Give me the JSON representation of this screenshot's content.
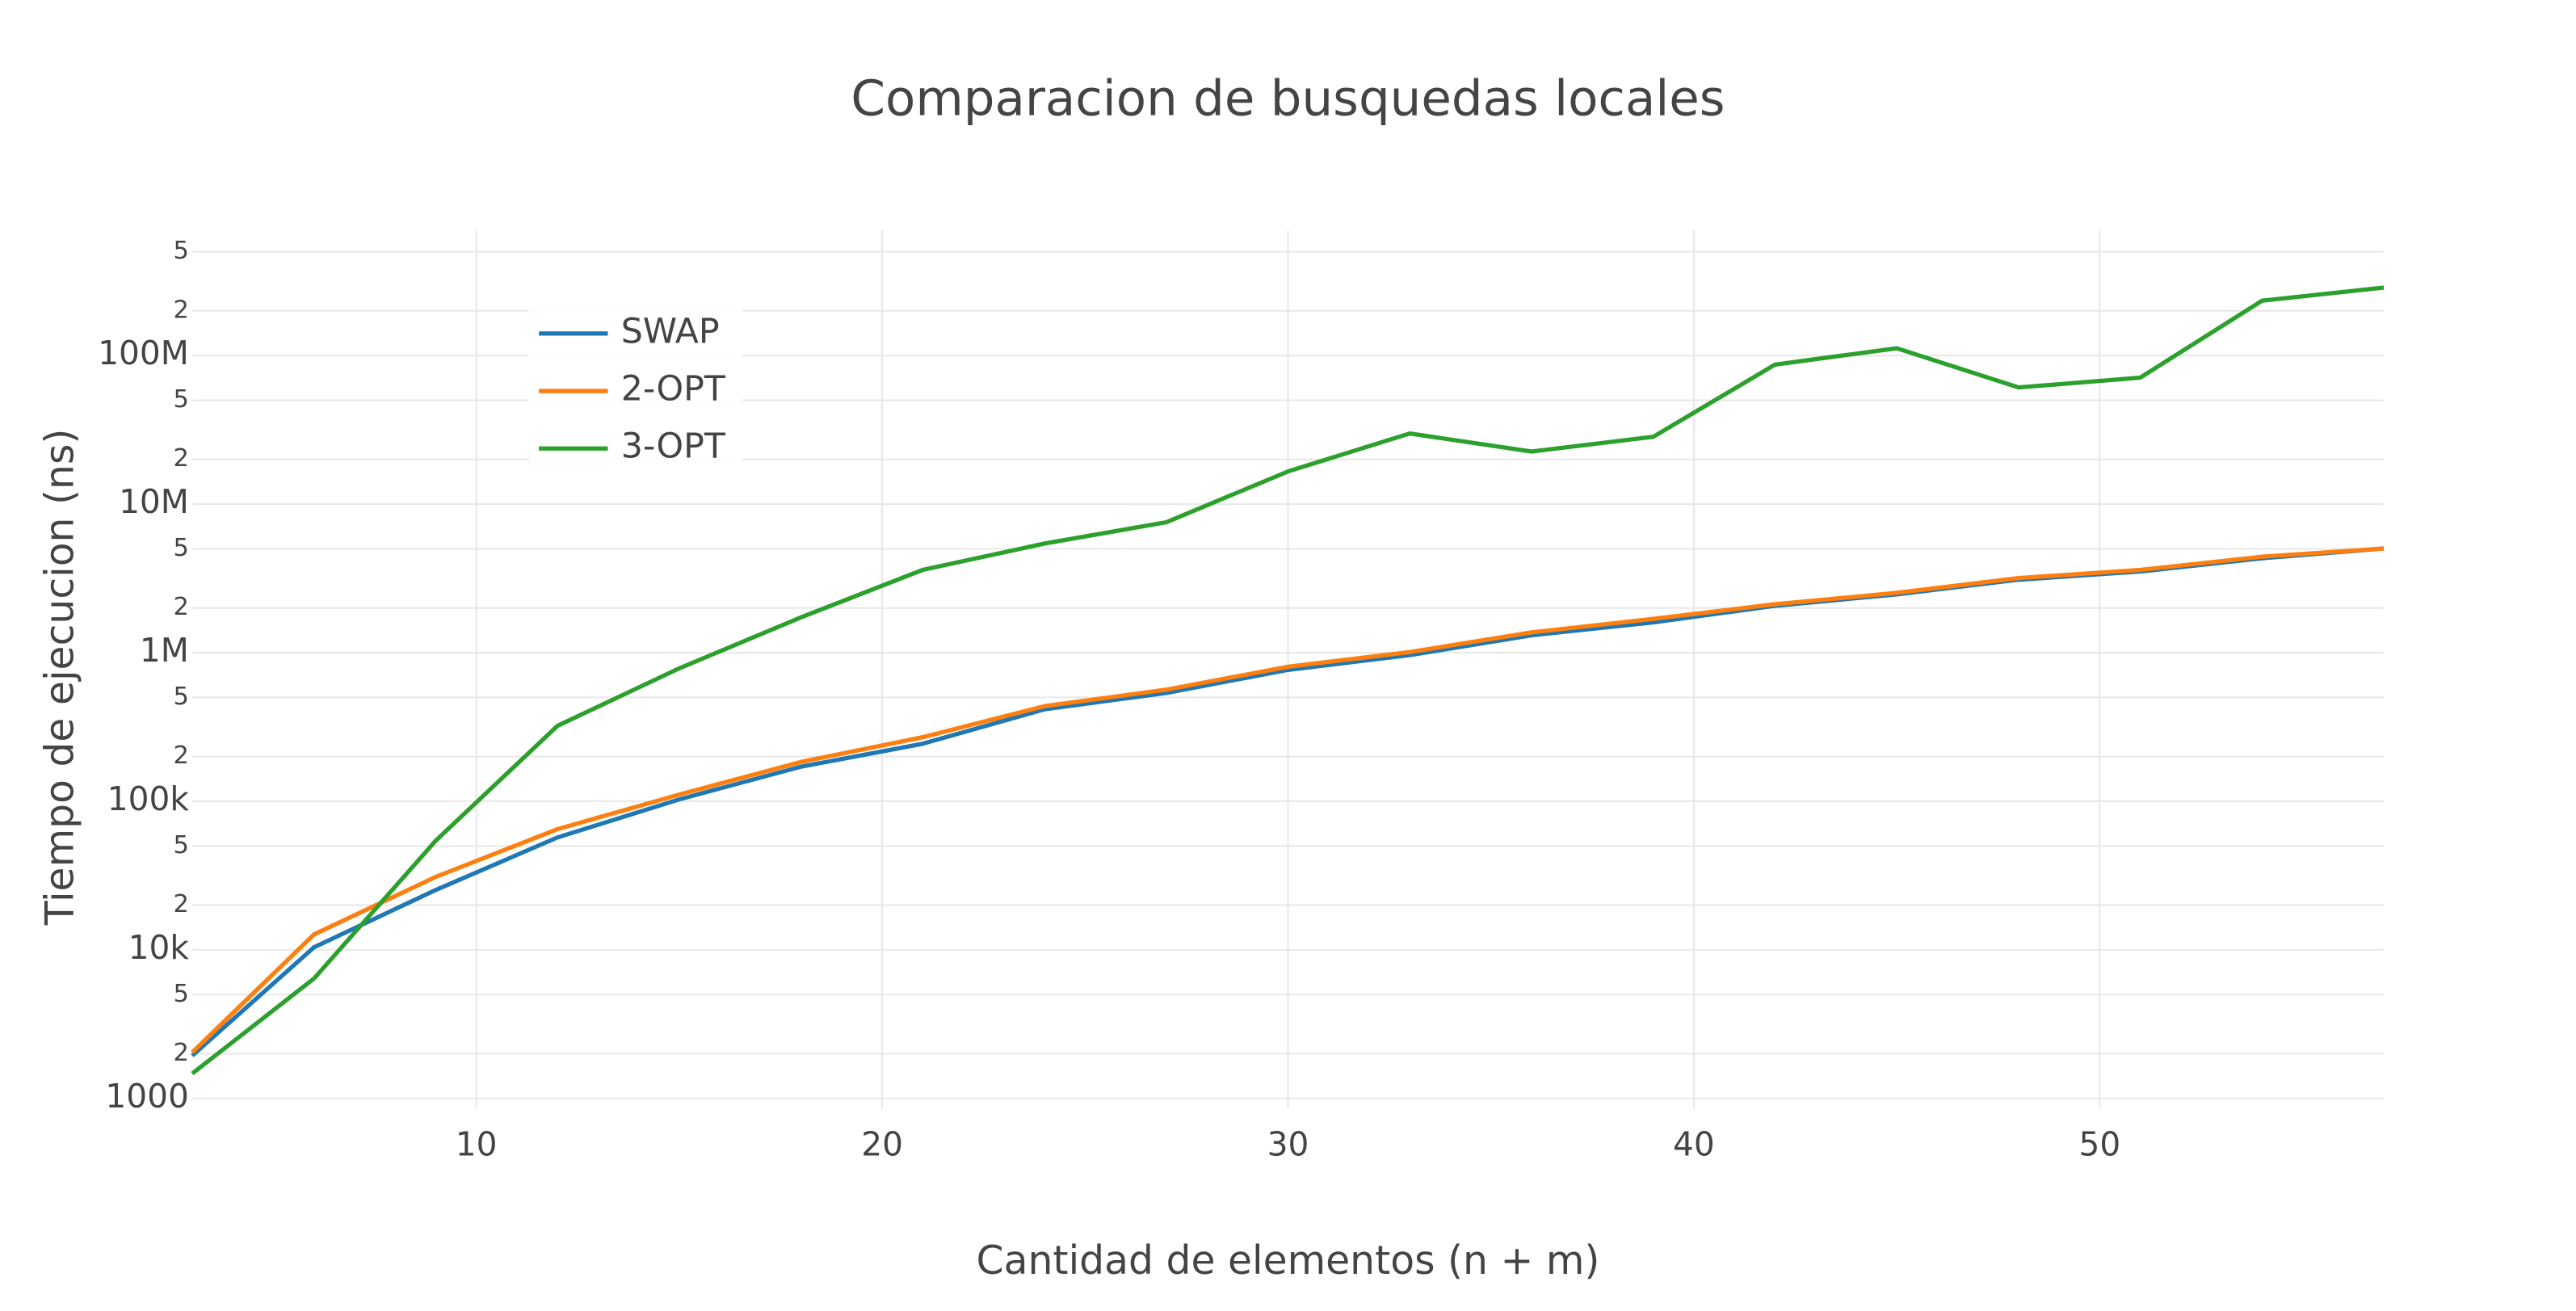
{
  "chart_data": {
    "type": "line",
    "title": "Comparacion de busquedas locales",
    "x_label": "Cantidad de elementos (n + m)",
    "y_label": "Tiempo de ejecucion (ns)",
    "x": [
      3,
      6,
      9,
      12,
      15,
      18,
      21,
      24,
      27,
      30,
      33,
      36,
      39,
      42,
      45,
      48,
      51,
      54,
      57
    ],
    "series": [
      {
        "name": "SWAP",
        "color": "#1f77b4",
        "values": [
          1940,
          10400,
          25300,
          57100,
          103000,
          171000,
          244000,
          416000,
          536000,
          766000,
          963000,
          1310000,
          1600000,
          2070000,
          2470000,
          3100000,
          3520000,
          4320000,
          5030000
        ]
      },
      {
        "name": "2-OPT",
        "color": "#ff7f0e",
        "values": [
          2040,
          12700,
          31000,
          64900,
          111000,
          184000,
          270000,
          437000,
          564000,
          805000,
          1010000,
          1370000,
          1690000,
          2120000,
          2530000,
          3180000,
          3610000,
          4430000,
          5030000
        ]
      },
      {
        "name": "3-OPT",
        "color": "#2ca02c",
        "values": [
          1470,
          6410,
          54300,
          322000,
          785000,
          1730000,
          3610000,
          5430000,
          7550000,
          16600000,
          29900000,
          22600000,
          28400000,
          86900000,
          112000000,
          61000000,
          71000000,
          234000000,
          287000000
        ]
      }
    ],
    "xlim": [
      3,
      57
    ],
    "xticks": [
      10,
      20,
      30,
      40,
      50
    ],
    "ylim": [
      850,
      700000000
    ],
    "yscale": "log",
    "yticks": [
      1000,
      {
        "value": 2000,
        "label": "2"
      },
      {
        "value": 5000,
        "label": "5"
      },
      {
        "value": 10000,
        "label": "10k"
      },
      {
        "value": 20000,
        "label": "2"
      },
      {
        "value": 50000,
        "label": "5"
      },
      {
        "value": 100000,
        "label": "100k"
      },
      {
        "value": 200000,
        "label": "2"
      },
      {
        "value": 500000,
        "label": "5"
      },
      {
        "value": 1000000,
        "label": "1M"
      },
      {
        "value": 2000000,
        "label": "2"
      },
      {
        "value": 5000000,
        "label": "5"
      },
      {
        "value": 10000000,
        "label": "10M"
      },
      {
        "value": 20000000,
        "label": "2"
      },
      {
        "value": 50000000,
        "label": "5"
      },
      {
        "value": 100000000,
        "label": "100M"
      },
      {
        "value": 200000000,
        "label": "2"
      },
      {
        "value": 500000000,
        "label": "5"
      }
    ],
    "grid": true,
    "legend_position": "top-left"
  }
}
